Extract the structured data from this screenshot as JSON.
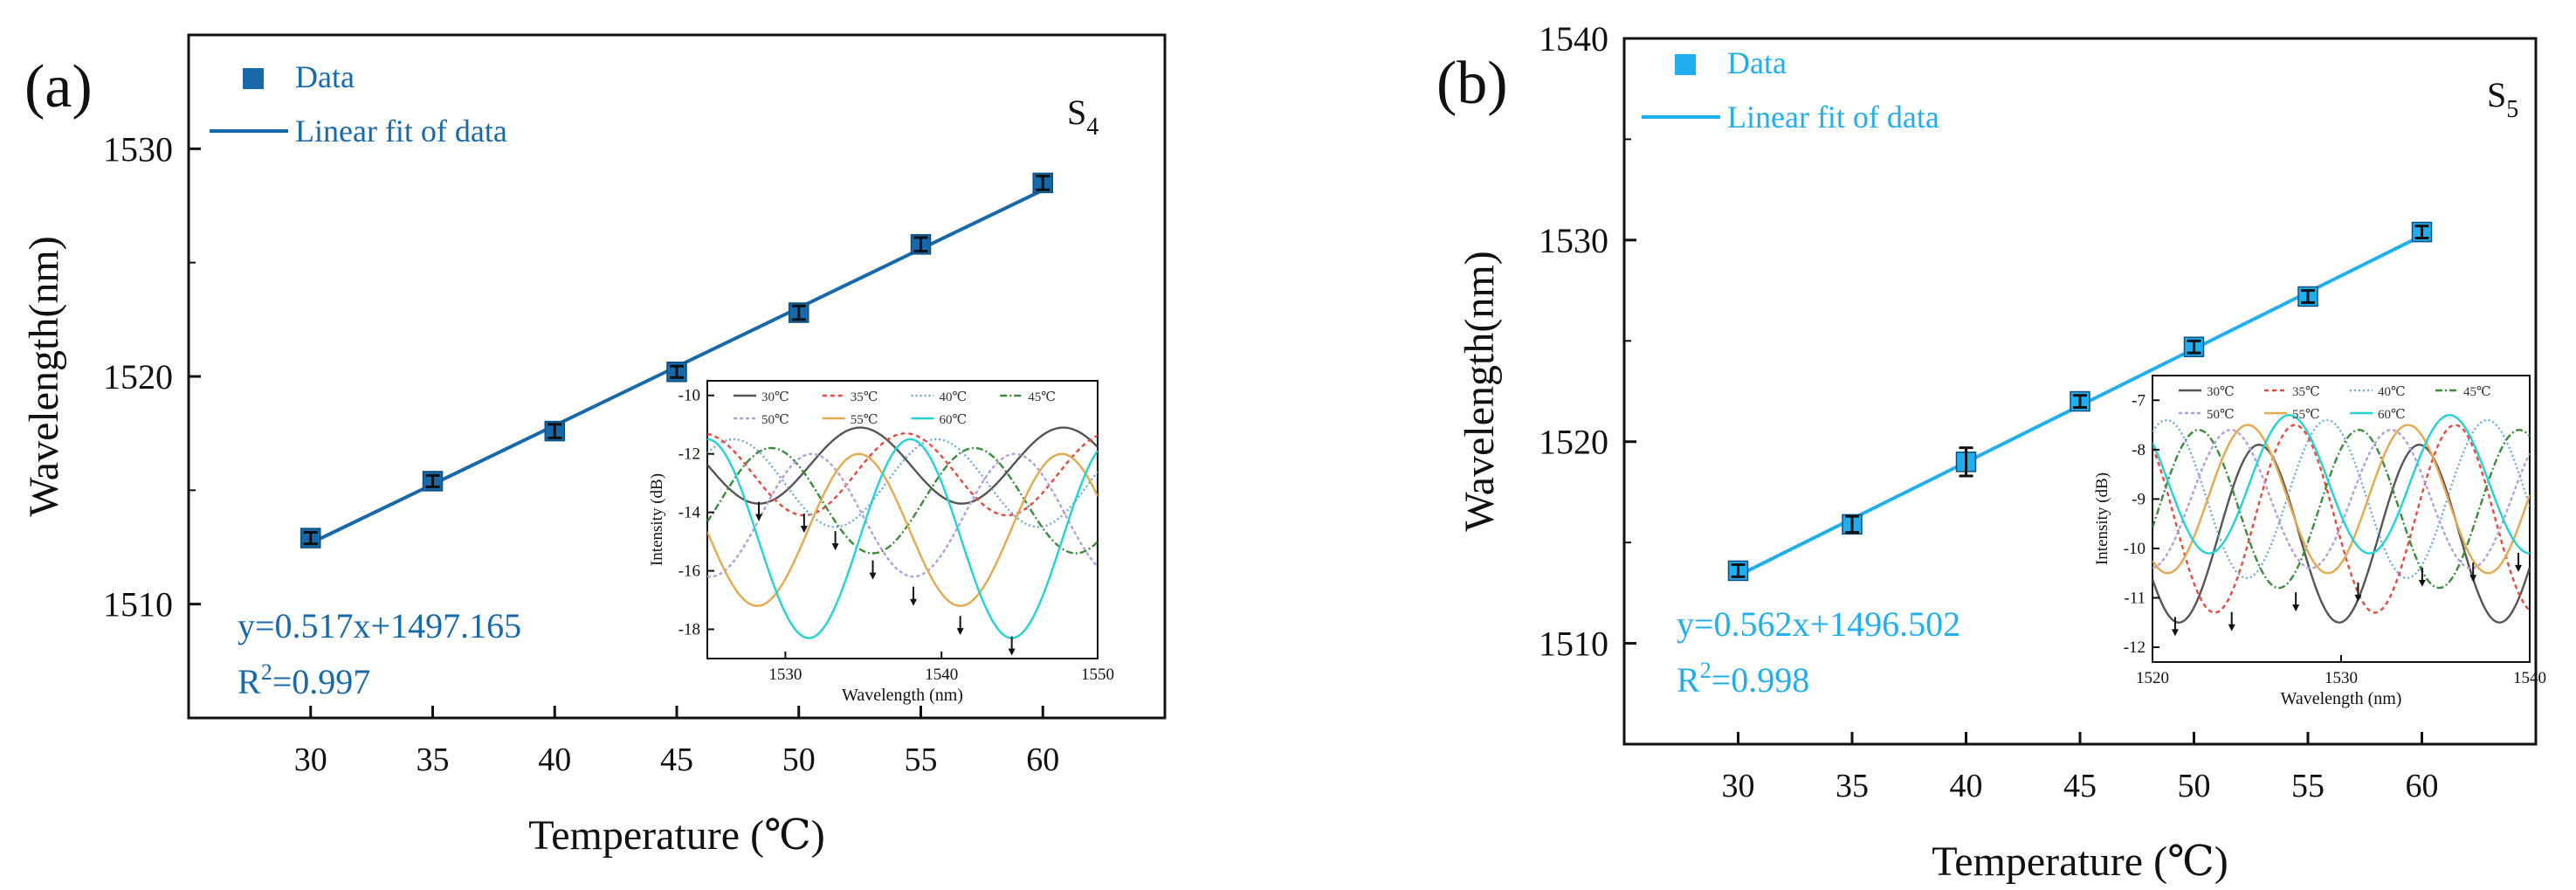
{
  "figure": {
    "x_unit_note": "Temperature (°C)"
  },
  "chart_data": [
    {
      "panel_label": "(a)",
      "type": "scatter",
      "sample_label": "S",
      "sample_sub": "4",
      "color": "#1769AA",
      "title": "",
      "xlabel": "Temperature (℃)",
      "ylabel": "Wavelength(nm)",
      "xlim": [
        25,
        65
      ],
      "ylim": [
        1505,
        1535
      ],
      "xticks": [
        30,
        35,
        40,
        45,
        50,
        55,
        60
      ],
      "yticks": [
        1510,
        1520,
        1530
      ],
      "legend": {
        "position": "top-left",
        "data_label": "Data",
        "fit_label": "Linear fit of data"
      },
      "series": [
        {
          "name": "Data",
          "x": [
            30,
            35,
            40,
            45,
            50,
            55,
            60
          ],
          "y": [
            1512.9,
            1515.4,
            1517.6,
            1520.2,
            1522.8,
            1525.8,
            1528.5
          ],
          "err": [
            0.25,
            0.25,
            0.3,
            0.25,
            0.3,
            0.3,
            0.3
          ]
        }
      ],
      "fit": {
        "slope": 0.517,
        "intercept": 1497.165
      },
      "equation": "y=0.517x+1497.165",
      "r2_prefix": "R",
      "r2_sup": "2",
      "r2_value": "=0.997",
      "inset": {
        "xlabel": "Wavelength (nm)",
        "ylabel": "Intensity (dB)",
        "xlim": [
          1525,
          1550
        ],
        "ylim": [
          -19,
          -9.5
        ],
        "xticks": [
          1530,
          1540,
          1550
        ],
        "yticks": [
          -18,
          -16,
          -14,
          -12,
          -10
        ],
        "curves": [
          {
            "label": "30℃",
            "color": "#555555",
            "dash": "",
            "center": -12.4,
            "amp": 1.3,
            "period": 13,
            "min_at": 1528.3
          },
          {
            "label": "35℃",
            "color": "#e8493f",
            "dash": "5,4",
            "center": -12.7,
            "amp": 1.4,
            "period": 13,
            "min_at": 1531.2
          },
          {
            "label": "40℃",
            "color": "#6fa8dc",
            "dash": "2,3",
            "center": -13.0,
            "amp": 1.5,
            "period": 13,
            "min_at": 1533.2
          },
          {
            "label": "45℃",
            "color": "#3d8b3d",
            "dash": "8,3,2,3",
            "center": -13.6,
            "amp": 1.8,
            "period": 13,
            "min_at": 1535.6
          },
          {
            "label": "50℃",
            "color": "#b39ddb",
            "dash": "4,3",
            "center": -14.1,
            "amp": 2.1,
            "period": 13,
            "min_at": 1538.2
          },
          {
            "label": "55℃",
            "color": "#e6a84c",
            "dash": "",
            "center": -14.6,
            "amp": 2.6,
            "period": 13,
            "min_at": 1541.2
          },
          {
            "label": "60℃",
            "color": "#22d3d3",
            "dash": "",
            "center": -14.9,
            "amp": 3.4,
            "period": 13,
            "min_at": 1544.5
          }
        ],
        "arrows": [
          {
            "x": 1528.3,
            "y": -14.0
          },
          {
            "x": 1531.2,
            "y": -14.4
          },
          {
            "x": 1533.2,
            "y": -15.0
          },
          {
            "x": 1535.6,
            "y": -16.0
          },
          {
            "x": 1538.2,
            "y": -16.9
          },
          {
            "x": 1541.2,
            "y": -17.9
          },
          {
            "x": 1544.5,
            "y": -18.6
          }
        ]
      }
    },
    {
      "panel_label": "(b)",
      "type": "scatter",
      "sample_label": "S",
      "sample_sub": "5",
      "color": "#1FAEF0",
      "title": "",
      "xlabel": "Temperature (℃)",
      "ylabel": "Wavelength(nm)",
      "xlim": [
        25,
        65
      ],
      "ylim": [
        1505,
        1540
      ],
      "xticks": [
        30,
        35,
        40,
        45,
        50,
        55,
        60
      ],
      "yticks": [
        1510,
        1520,
        1530,
        1540
      ],
      "legend": {
        "position": "top-left",
        "data_label": "Data",
        "fit_label": "Linear fit of data"
      },
      "series": [
        {
          "name": "Data",
          "x": [
            30,
            35,
            40,
            45,
            50,
            55,
            60
          ],
          "y": [
            1513.6,
            1515.9,
            1519.0,
            1522.0,
            1524.7,
            1527.2,
            1530.4
          ],
          "err": [
            0.3,
            0.4,
            0.7,
            0.3,
            0.3,
            0.3,
            0.3
          ]
        }
      ],
      "fit": {
        "slope": 0.562,
        "intercept": 1496.502
      },
      "equation": "y=0.562x+1496.502",
      "r2_prefix": "R",
      "r2_sup": "2",
      "r2_value": "=0.998",
      "inset": {
        "xlabel": "Wavelength (nm)",
        "ylabel": "Intensity (dB)",
        "xlim": [
          1520,
          1540
        ],
        "ylim": [
          -12.3,
          -6.5
        ],
        "xticks": [
          1520,
          1530,
          1540
        ],
        "yticks": [
          -12,
          -11,
          -10,
          -9,
          -8,
          -7
        ],
        "curves": [
          {
            "label": "30℃",
            "color": "#555555",
            "dash": "",
            "center": -9.7,
            "amp": 1.8,
            "period": 8.5,
            "min_at": 1521.4
          },
          {
            "label": "35℃",
            "color": "#e8493f",
            "dash": "5,4",
            "center": -9.4,
            "amp": 1.9,
            "period": 8.5,
            "min_at": 1523.3
          },
          {
            "label": "40℃",
            "color": "#6fa8dc",
            "dash": "2,3",
            "center": -9.0,
            "amp": 1.6,
            "period": 8.5,
            "min_at": 1525.0
          },
          {
            "label": "45℃",
            "color": "#3d8b3d",
            "dash": "8,3,2,3",
            "center": -9.2,
            "amp": 1.6,
            "period": 8.5,
            "min_at": 1526.7
          },
          {
            "label": "50℃",
            "color": "#b39ddb",
            "dash": "4,3",
            "center": -9.0,
            "amp": 1.4,
            "period": 8.5,
            "min_at": 1528.4
          },
          {
            "label": "55℃",
            "color": "#e6a84c",
            "dash": "",
            "center": -9.0,
            "amp": 1.5,
            "period": 8.5,
            "min_at": 1529.3
          },
          {
            "label": "60℃",
            "color": "#22d3d3",
            "dash": "",
            "center": -8.7,
            "amp": 1.4,
            "period": 8.5,
            "min_at": 1531.5
          }
        ],
        "arrows": [
          {
            "x": 1521.2,
            "y": -11.6
          },
          {
            "x": 1524.2,
            "y": -11.5
          },
          {
            "x": 1527.6,
            "y": -11.1
          },
          {
            "x": 1530.9,
            "y": -10.9
          },
          {
            "x": 1534.3,
            "y": -10.6
          },
          {
            "x": 1537.0,
            "y": -10.5
          },
          {
            "x": 1539.4,
            "y": -10.3
          }
        ]
      }
    }
  ]
}
